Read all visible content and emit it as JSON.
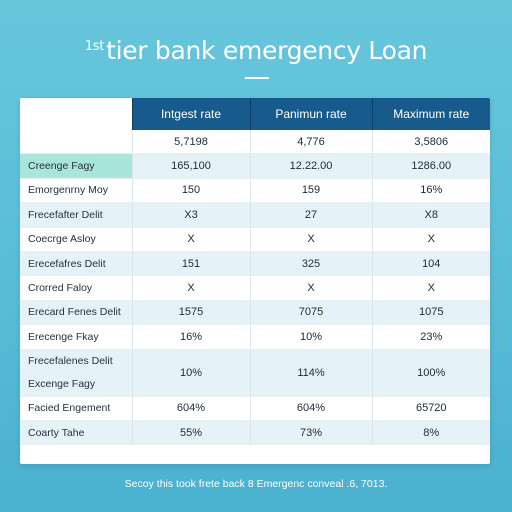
{
  "title": {
    "sup": "1st",
    "text": "tier bank emergency Loan"
  },
  "table": {
    "headers": [
      "",
      "Intgest rate",
      "Panimun rate",
      "Maximum rate"
    ],
    "rows": [
      {
        "label": "",
        "values": [
          "5,7198",
          "4,776",
          "3,5806"
        ]
      },
      {
        "label": "Creenge Fagy",
        "values": [
          "165,100",
          "12.22.00",
          "1286.00"
        ]
      },
      {
        "label": "Emorgenrny Moy",
        "values": [
          "150",
          "159",
          "16%"
        ]
      },
      {
        "label": "Frecefafter Delit",
        "values": [
          "X3",
          "27",
          "X8"
        ]
      },
      {
        "label": "Coecrge Asloy",
        "values": [
          "X",
          "X",
          "X"
        ]
      },
      {
        "label": "Erecefafres Delit",
        "values": [
          "151",
          "325",
          "104"
        ]
      },
      {
        "label": "Crorred Faloy",
        "values": [
          "X",
          "X",
          "X"
        ]
      },
      {
        "label": "Erecard Fenes Delit",
        "values": [
          "1575",
          "7075",
          "1075"
        ]
      },
      {
        "label": "Erecenge Fkay",
        "values": [
          "16%",
          "10%",
          "23%"
        ]
      },
      {
        "label": "Frecefalenes Delit",
        "label2": "Excenge Fagy",
        "values": [
          "10%",
          "114%",
          "100%"
        ]
      },
      {
        "label": "Facied Engement",
        "values": [
          "604%",
          "604%",
          "65720"
        ]
      },
      {
        "label": "Coarty Tahe",
        "values": [
          "55%",
          "73%",
          "8%"
        ]
      }
    ]
  },
  "footer": "Secoy this took frete back 8 Emergenc conveal .6, 7013."
}
